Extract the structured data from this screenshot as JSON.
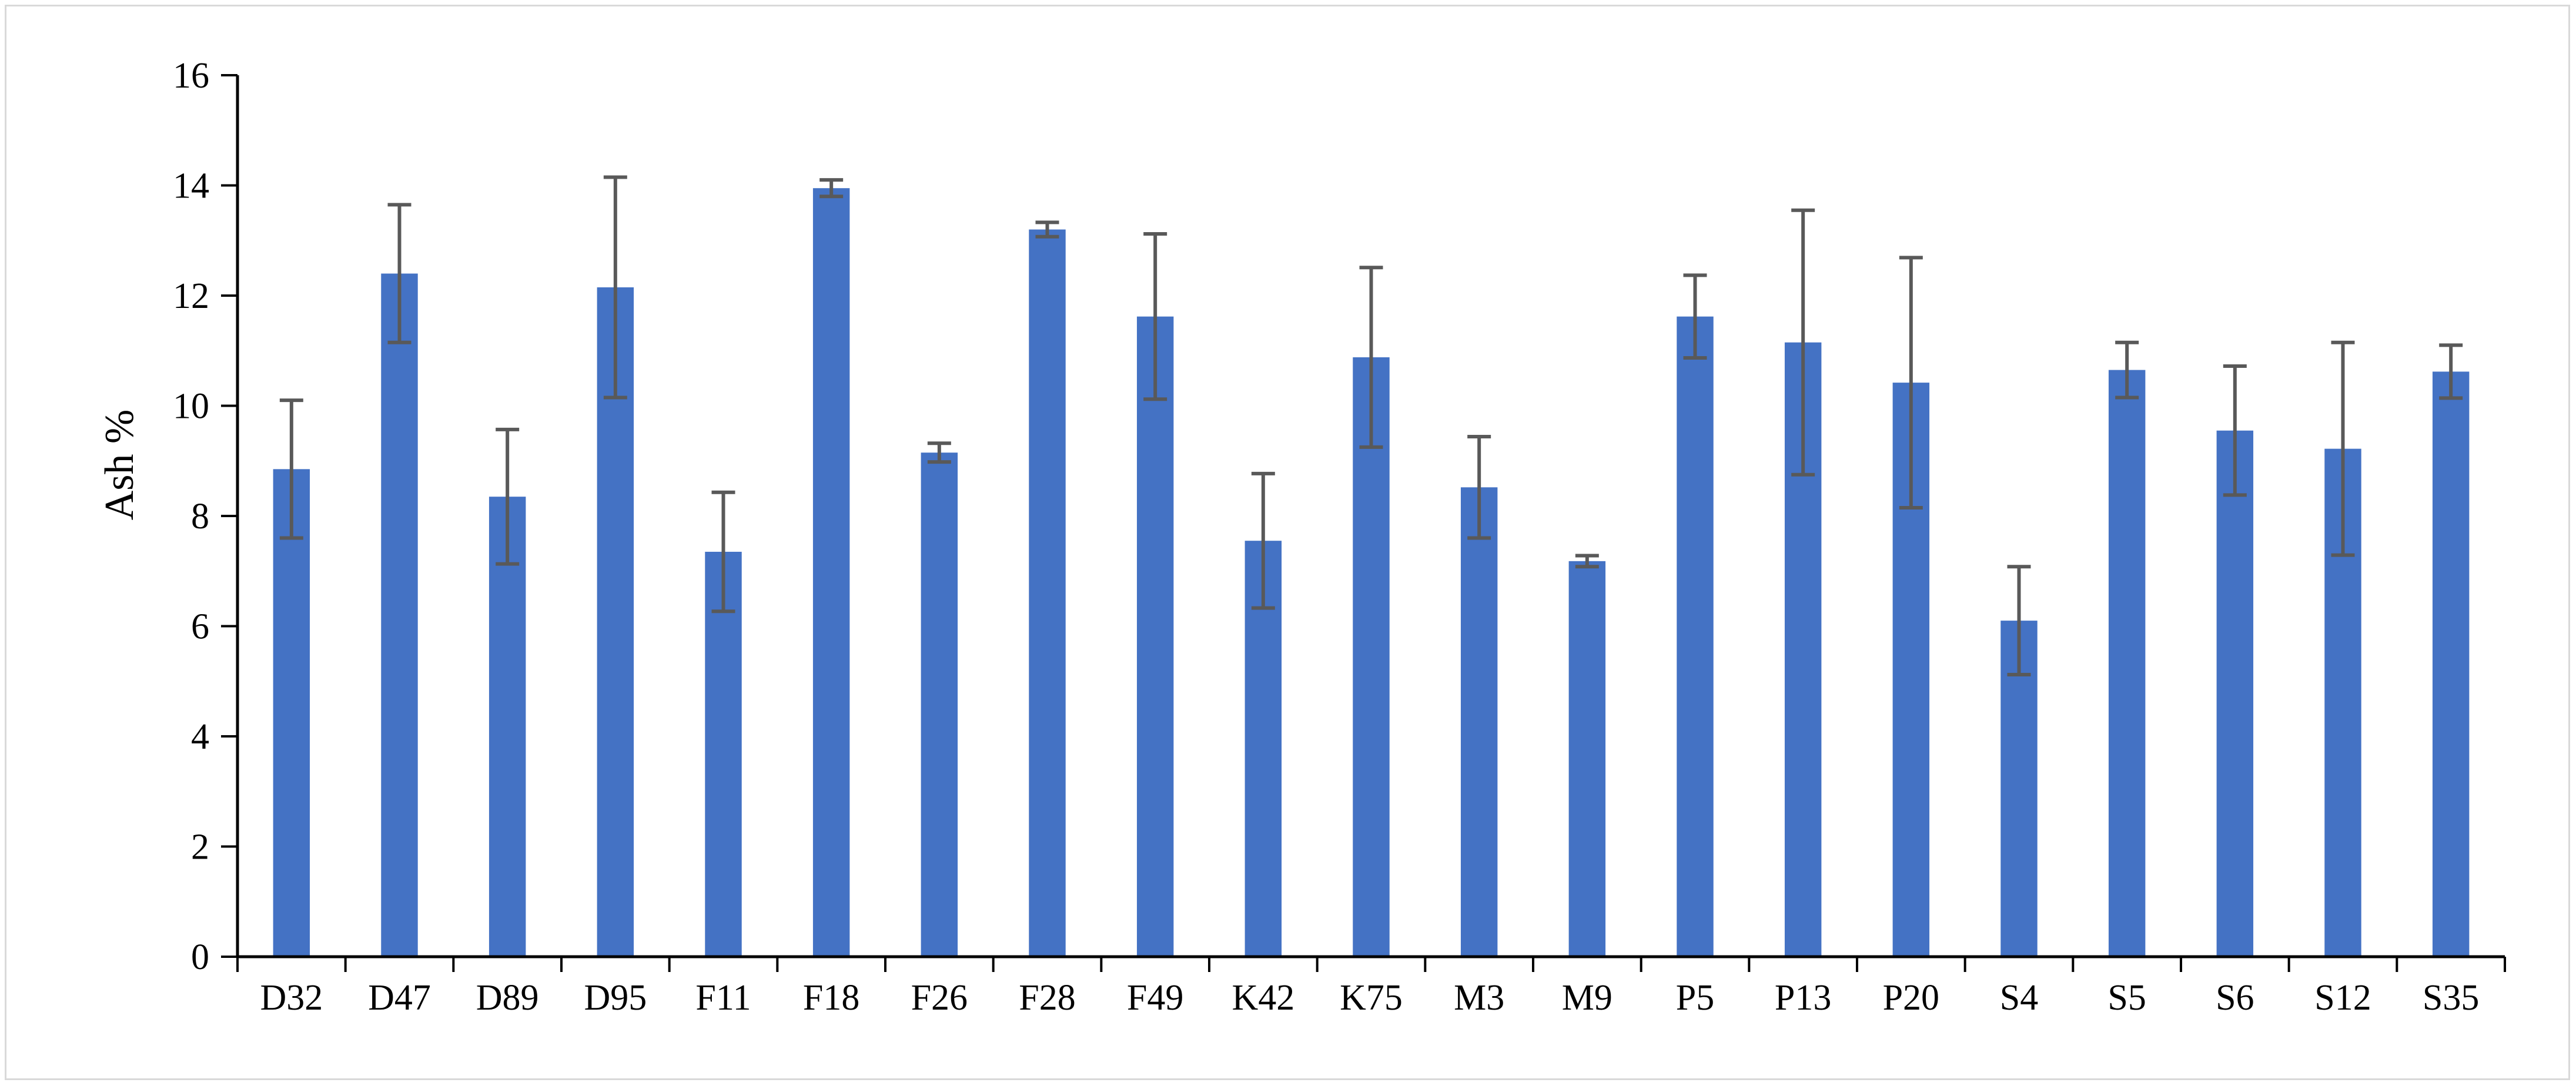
{
  "chart_data": {
    "type": "bar",
    "title": "",
    "xlabel": "",
    "ylabel": "Ash %",
    "ylim": [
      0,
      16
    ],
    "yticks": [
      0,
      2,
      4,
      6,
      8,
      10,
      12,
      14,
      16
    ],
    "grid": false,
    "legend": "none",
    "bar_color": "#4472c4",
    "error_bar_color": "#595959",
    "categories": [
      "D32",
      "D47",
      "D89",
      "D95",
      "F11",
      "F18",
      "F26",
      "F28",
      "F49",
      "K42",
      "K75",
      "M3",
      "M9",
      "P5",
      "P13",
      "P20",
      "S4",
      "S5",
      "S6",
      "S12",
      "S35"
    ],
    "values": [
      8.85,
      12.4,
      8.35,
      12.15,
      7.35,
      13.95,
      9.15,
      13.2,
      11.62,
      7.55,
      10.88,
      8.52,
      7.18,
      11.62,
      11.15,
      10.42,
      6.1,
      10.65,
      9.55,
      9.22,
      10.62
    ],
    "errors": [
      1.25,
      1.25,
      1.22,
      2.0,
      1.08,
      0.15,
      0.17,
      0.13,
      1.5,
      1.22,
      1.63,
      0.92,
      0.1,
      0.75,
      2.4,
      2.27,
      0.98,
      0.5,
      1.17,
      1.93,
      0.48
    ]
  }
}
